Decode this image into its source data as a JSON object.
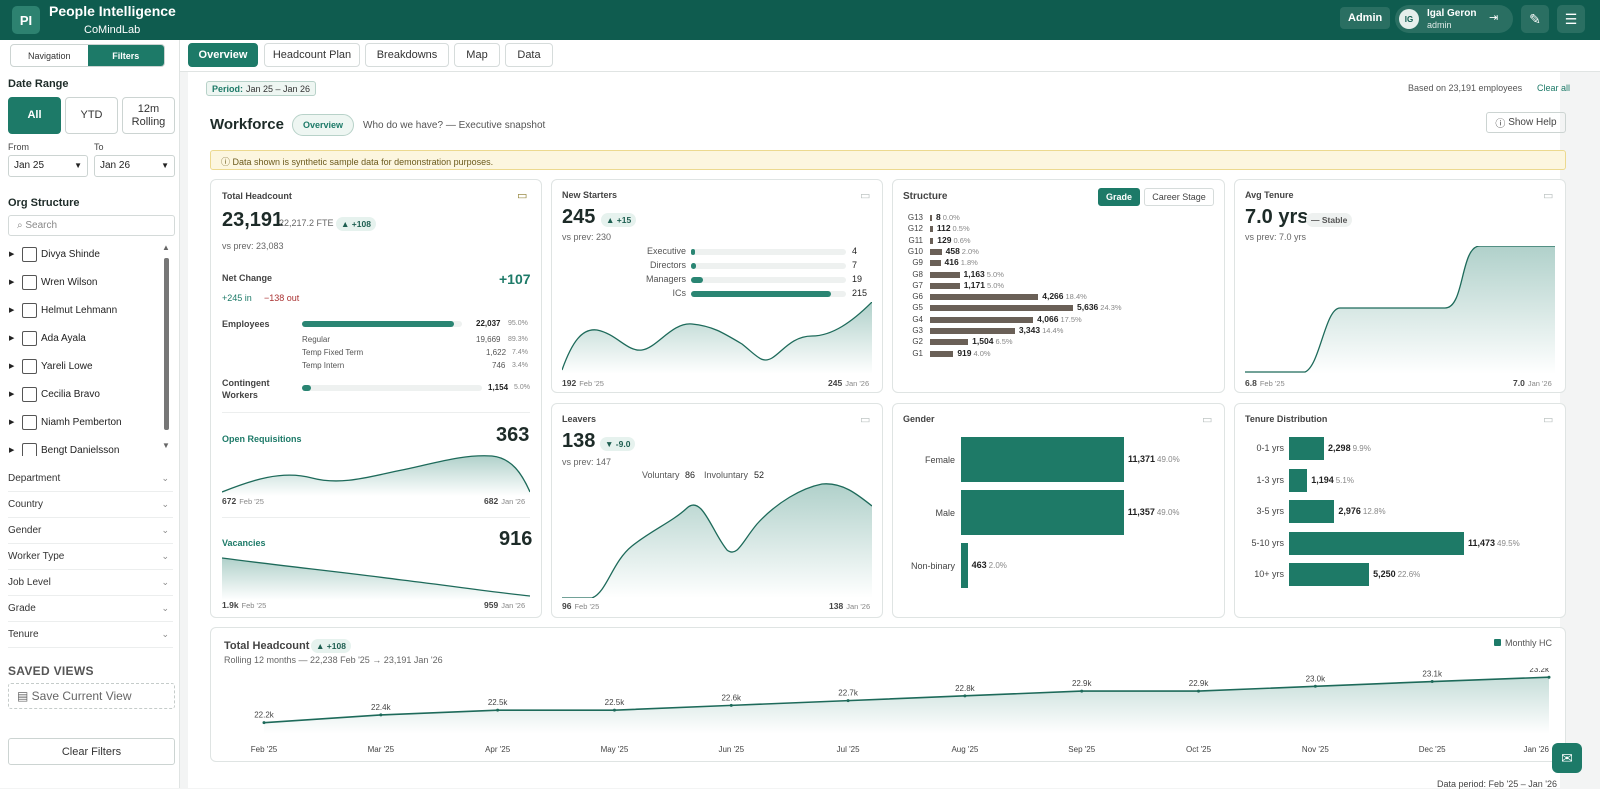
{
  "app": {
    "logo": "PI",
    "title": "People Intelligence",
    "subtitle": "CoMindLab",
    "admin_badge": "Admin",
    "user_initials": "IG",
    "user_name": "Igal Geron",
    "user_role": "admin",
    "logout_icon": "⇥",
    "edit_icon": "✎",
    "settings_icon": "☰"
  },
  "sidebar": {
    "tabs": [
      "Navigation",
      "Filters"
    ],
    "date_range_title": "Date Range",
    "date_buttons": [
      "All",
      "YTD",
      "12m Rolling"
    ],
    "from_label": "From",
    "to_label": "To",
    "from_value": "Jan 25",
    "to_value": "Jan 26",
    "org_title": "Org Structure",
    "search_placeholder": "Search",
    "tree": [
      "Divya Shinde",
      "Wren Wilson",
      "Helmut Lehmann",
      "Ada Ayala",
      "Yareli Lowe",
      "Cecilia Bravo",
      "Niamh Pemberton",
      "Bengt Danielsson"
    ],
    "facets": [
      "Department",
      "Country",
      "Gender",
      "Worker Type",
      "Job Level",
      "Grade",
      "Tenure"
    ],
    "saved_title": "SAVED VIEWS",
    "save_view": "Save Current View",
    "clear_filters": "Clear Filters"
  },
  "tabs": [
    "Overview",
    "Headcount Plan",
    "Breakdowns",
    "Map",
    "Data"
  ],
  "header": {
    "period_label": "Period:",
    "period_value": "Jan 25 – Jan 26",
    "based_on": "Based on 23,191 employees",
    "clear_all": "Clear all",
    "title": "Workforce",
    "pill": "Overview",
    "subtitle": "Who do we have? — Executive snapshot",
    "help": "Show Help",
    "notice": "Data shown is synthetic sample data for demonstration purposes."
  },
  "headcount": {
    "title": "Total Headcount",
    "value": "23,191",
    "fte": "22,217.2 FTE",
    "delta": "▲ +108",
    "prev": "vs prev: 23,083",
    "net_title": "Net Change",
    "net_value": "+107",
    "net_in": "+245 in",
    "net_out": "−138 out",
    "employees_label": "Employees",
    "employees_value": "22,037",
    "employees_pct": "95.0%",
    "employees_frac": 0.95,
    "sub": [
      {
        "label": "Regular",
        "value": "19,669",
        "pct": "89.3%"
      },
      {
        "label": "Temp Fixed Term",
        "value": "1,622",
        "pct": "7.4%"
      },
      {
        "label": "Temp Intern",
        "value": "746",
        "pct": "3.4%"
      }
    ],
    "contingent_label": "Contingent Workers",
    "contingent_value": "1,154",
    "contingent_pct": "5.0%",
    "contingent_frac": 0.05,
    "req_title": "Open Requisitions",
    "req_value": "363",
    "req_start": "672",
    "req_end": "682",
    "vac_title": "Vacancies",
    "vac_value": "916",
    "vac_start": "1.9k",
    "vac_end": "959",
    "start_label": "Feb '25",
    "end_label": "Jan '26"
  },
  "starters": {
    "title": "New Starters",
    "value": "245",
    "delta": "▲ +15",
    "prev": "vs prev: 230",
    "rows": [
      {
        "label": "Executive",
        "value": "4"
      },
      {
        "label": "Directors",
        "value": "7"
      },
      {
        "label": "Managers",
        "value": "19"
      },
      {
        "label": "ICs",
        "value": "215"
      }
    ],
    "start": "192",
    "end": "245",
    "start_label": "Feb '25",
    "end_label": "Jan '26"
  },
  "leavers": {
    "title": "Leavers",
    "value": "138",
    "delta": "▼ -9.0",
    "prev": "vs prev: 147",
    "vol_label": "Voluntary",
    "vol_value": "86",
    "invol_label": "Involuntary",
    "invol_value": "52",
    "start": "96",
    "end": "138",
    "start_label": "Feb '25",
    "end_label": "Jan '26"
  },
  "structure": {
    "title": "Structure",
    "toggle": [
      "Grade",
      "Career Stage"
    ],
    "rows": [
      {
        "g": "G13",
        "v": "8",
        "p": "0.0%",
        "n": 8
      },
      {
        "g": "G12",
        "v": "112",
        "p": "0.5%",
        "n": 112
      },
      {
        "g": "G11",
        "v": "129",
        "p": "0.6%",
        "n": 129
      },
      {
        "g": "G10",
        "v": "458",
        "p": "2.0%",
        "n": 458
      },
      {
        "g": "G9",
        "v": "416",
        "p": "1.8%",
        "n": 416
      },
      {
        "g": "G8",
        "v": "1,163",
        "p": "5.0%",
        "n": 1163
      },
      {
        "g": "G7",
        "v": "1,171",
        "p": "5.0%",
        "n": 1171
      },
      {
        "g": "G6",
        "v": "4,266",
        "p": "18.4%",
        "n": 4266
      },
      {
        "g": "G5",
        "v": "5,636",
        "p": "24.3%",
        "n": 5636
      },
      {
        "g": "G4",
        "v": "4,066",
        "p": "17.5%",
        "n": 4066
      },
      {
        "g": "G3",
        "v": "3,343",
        "p": "14.4%",
        "n": 3343
      },
      {
        "g": "G2",
        "v": "1,504",
        "p": "6.5%",
        "n": 1504
      },
      {
        "g": "G1",
        "v": "919",
        "p": "4.0%",
        "n": 919
      }
    ]
  },
  "tenure": {
    "title": "Avg Tenure",
    "value": "7.0 yrs",
    "badge": "— Stable",
    "prev": "vs prev: 7.0 yrs",
    "start": "6.8",
    "end": "7.0",
    "start_label": "Feb '25",
    "end_label": "Jan '26"
  },
  "gender": {
    "title": "Gender",
    "rows": [
      {
        "label": "Female",
        "v": "11,371",
        "p": "49.0%",
        "n": 11371
      },
      {
        "label": "Male",
        "v": "11,357",
        "p": "49.0%",
        "n": 11357
      },
      {
        "label": "Non-binary",
        "v": "463",
        "p": "2.0%",
        "n": 463
      }
    ]
  },
  "tenure_dist": {
    "title": "Tenure Distribution",
    "rows": [
      {
        "label": "0-1 yrs",
        "v": "2,298",
        "p": "9.9%",
        "n": 2298
      },
      {
        "label": "1-3 yrs",
        "v": "1,194",
        "p": "5.1%",
        "n": 1194
      },
      {
        "label": "3-5 yrs",
        "v": "2,976",
        "p": "12.8%",
        "n": 2976
      },
      {
        "label": "5-10 yrs",
        "v": "11,473",
        "p": "49.5%",
        "n": 11473
      },
      {
        "label": "10+ yrs",
        "v": "5,250",
        "p": "22.6%",
        "n": 5250
      }
    ]
  },
  "trend": {
    "title": "Total Headcount",
    "delta": "▲ +108",
    "subtitle": "Rolling 12 months — 22,238 Feb '25 → 23,191 Jan '26",
    "legend": "Monthly HC",
    "footer": "Data period: Feb '25 – Jan '26"
  },
  "chart_data": {
    "type": "line",
    "x": [
      "Feb '25",
      "Mar '25",
      "Apr '25",
      "May '25",
      "Jun '25",
      "Jul '25",
      "Aug '25",
      "Sep '25",
      "Oct '25",
      "Nov '25",
      "Dec '25",
      "Jan '26"
    ],
    "series": [
      {
        "name": "Monthly HC",
        "values": [
          22238,
          22400,
          22500,
          22500,
          22600,
          22700,
          22800,
          22900,
          22900,
          23000,
          23100,
          23191
        ],
        "labels": [
          "22.2k",
          "22.4k",
          "22.5k",
          "22.5k",
          "22.6k",
          "22.7k",
          "22.8k",
          "22.9k",
          "22.9k",
          "23.0k",
          "23.1k",
          "23.2k"
        ]
      }
    ]
  },
  "colors": {
    "brand": "#0f5c4f",
    "accent": "#1d7a68",
    "grade_bar": "#6a6057",
    "notice_bg": "#fcf6df"
  }
}
